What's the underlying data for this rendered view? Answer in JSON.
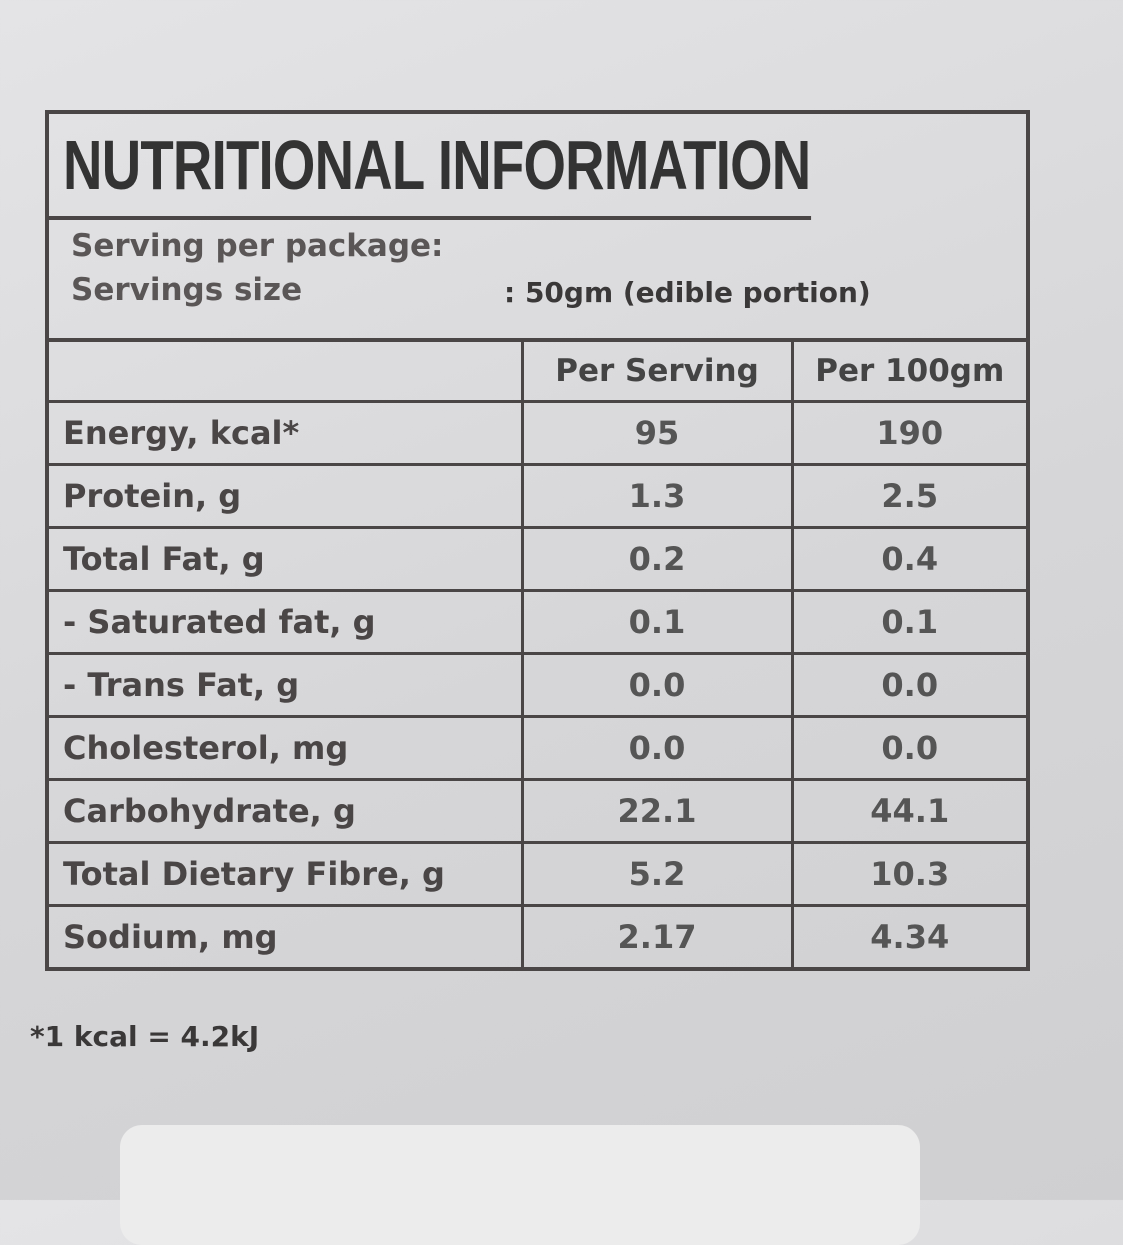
{
  "label": {
    "title": "NUTRITIONAL INFORMATION",
    "serving_per_package": "Serving per package:",
    "serving_size_label": "Servings size",
    "serving_size_value": ": 50gm (edible portion)",
    "columns": [
      "Per Serving",
      "Per 100gm"
    ],
    "rows": [
      [
        "Energy, kcal*",
        "95",
        "190"
      ],
      [
        "Protein, g",
        "1.3",
        "2.5"
      ],
      [
        "Total Fat, g",
        "0.2",
        "0.4"
      ],
      [
        "- Saturated fat, g",
        "0.1",
        "0.1"
      ],
      [
        "- Trans Fat, g",
        "0.0",
        "0.0"
      ],
      [
        "Cholesterol, mg",
        "0.0",
        "0.0"
      ],
      [
        "Carbohydrate, g",
        "22.1",
        "44.1"
      ],
      [
        "Total Dietary Fibre, g",
        "5.2",
        "10.3"
      ],
      [
        "Sodium, mg",
        "2.17",
        "4.34"
      ]
    ],
    "footnote": "*1 kcal = 4.2kJ"
  }
}
